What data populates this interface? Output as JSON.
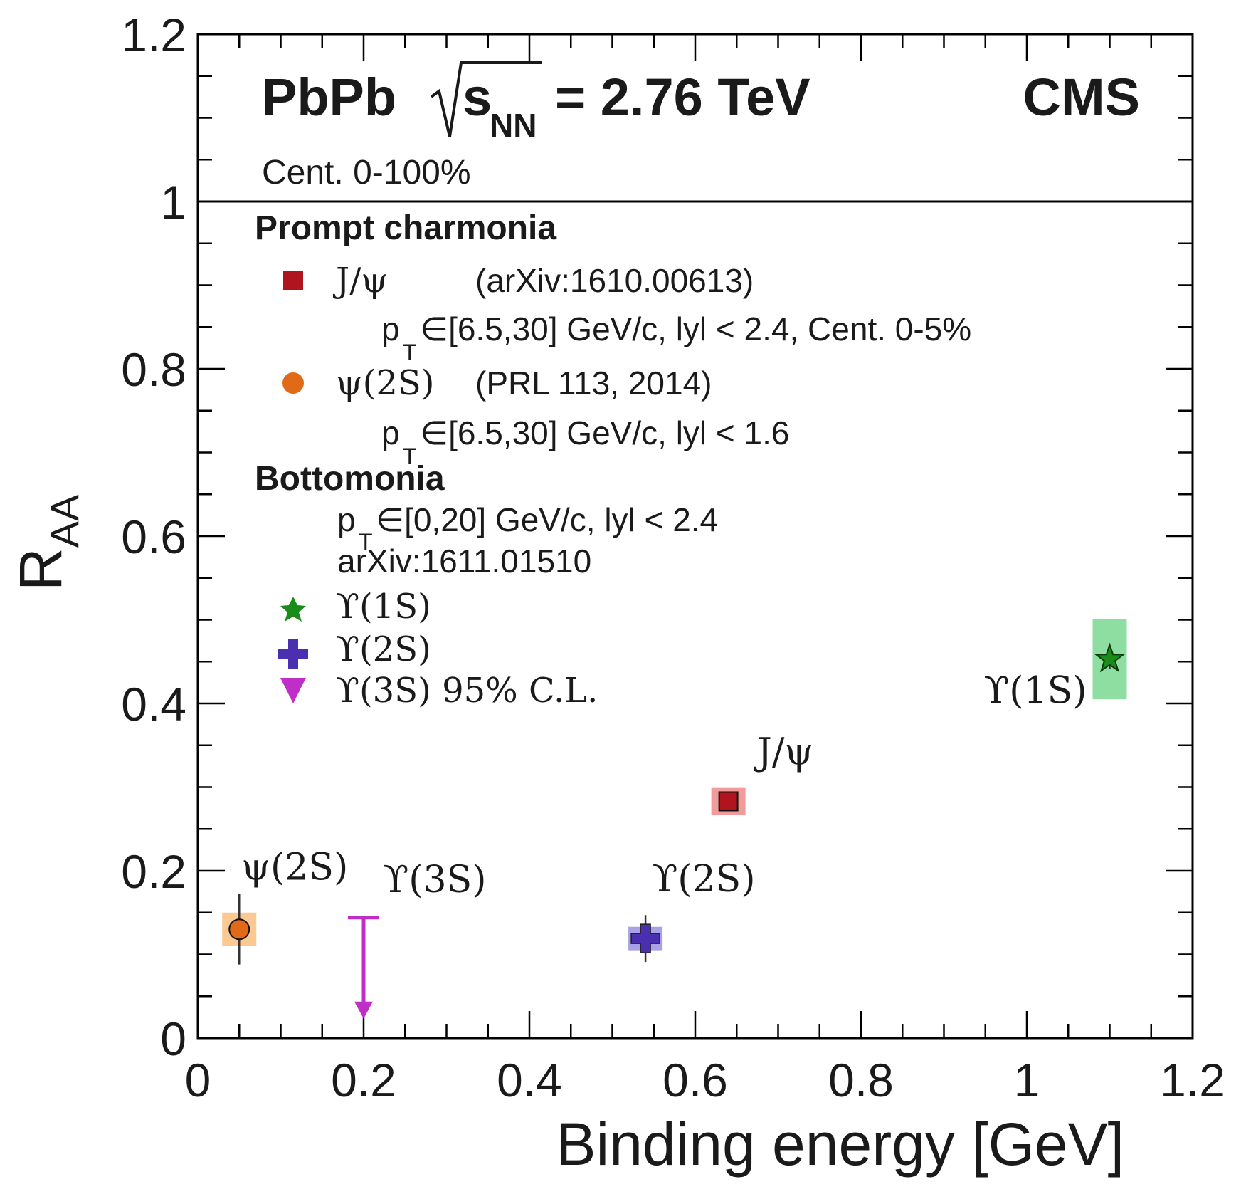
{
  "chart_data": {
    "type": "scatter",
    "title": "",
    "xlabel": "Binding energy [GeV]",
    "ylabel": "R",
    "ylabel_sub": "AA",
    "xlim": [
      0,
      1.2
    ],
    "ylim": [
      0,
      1.2
    ],
    "grid": false,
    "x_ticks": [
      "0",
      "0.2",
      "0.4",
      "0.6",
      "0.8",
      "1",
      "1.2"
    ],
    "y_ticks": [
      "0",
      "0.2",
      "0.4",
      "0.6",
      "0.8",
      "1",
      "1.2"
    ],
    "reference_line_y": 1,
    "header": {
      "collision": "PbPb",
      "energy_sub": "NN",
      "energy_value": "= 2.76 TeV",
      "experiment": "CMS",
      "centrality": "Cent. 0-100%"
    },
    "legend": {
      "section_charmonia": "Prompt charmonia",
      "jpsi": {
        "label": "J/ψ",
        "ref": "(arXiv:1610.00613)",
        "cuts_pre": "p",
        "cuts_sub": "T",
        "cuts_post": "∈[6.5,30] GeV/c, lyl < 2.4, Cent. 0-5%"
      },
      "psi2s": {
        "label": "ψ(2S)",
        "ref": "(PRL 113, 2014)",
        "cuts_pre": "p",
        "cuts_sub": "T",
        "cuts_post": "∈[6.5,30] GeV/c, lyl < 1.6"
      },
      "section_bottomonia": "Bottomonia",
      "bottomonia_cuts_pre": "p",
      "bottomonia_cuts_sub": "T",
      "bottomonia_cuts_post": "∈[0,20] GeV/c, lyl < 2.4",
      "bottomonia_ref": "arXiv:1611.01510",
      "ups1s": "ϒ(1S)",
      "ups2s": "ϒ(2S)",
      "ups3s": "ϒ(3S) 95% C.L."
    },
    "series": [
      {
        "name": "J/ψ",
        "x": 0.64,
        "y": 0.283,
        "stat_err": 0.01,
        "syst_err": 0.016,
        "color": "#b0151f",
        "box_color": "#f08a8a",
        "marker": "square",
        "annotation": "J/ψ"
      },
      {
        "name": "ψ(2S)",
        "x": 0.05,
        "y": 0.13,
        "stat_err": 0.042,
        "syst_err": 0.02,
        "color": "#e06a18",
        "box_color": "#fbc080",
        "marker": "circle",
        "annotation": "ψ(2S)"
      },
      {
        "name": "ϒ(1S)",
        "x": 1.1,
        "y": 0.453,
        "stat_err": 0.012,
        "syst_err": 0.048,
        "color": "#1a8c1a",
        "box_color": "#79d88f",
        "marker": "star",
        "annotation": "ϒ(1S)"
      },
      {
        "name": "ϒ(2S)",
        "x": 0.54,
        "y": 0.119,
        "stat_err": 0.028,
        "syst_err": 0.014,
        "color": "#4a2fb0",
        "box_color": "#9a90e0",
        "marker": "cross",
        "annotation": "ϒ(2S)"
      },
      {
        "name": "ϒ(3S)",
        "x": 0.2,
        "y": 0.144,
        "upper_limit": true,
        "cl": "95% C.L.",
        "color": "#c02ec8",
        "marker": "triangle-down",
        "annotation": "ϒ(3S)"
      }
    ]
  }
}
